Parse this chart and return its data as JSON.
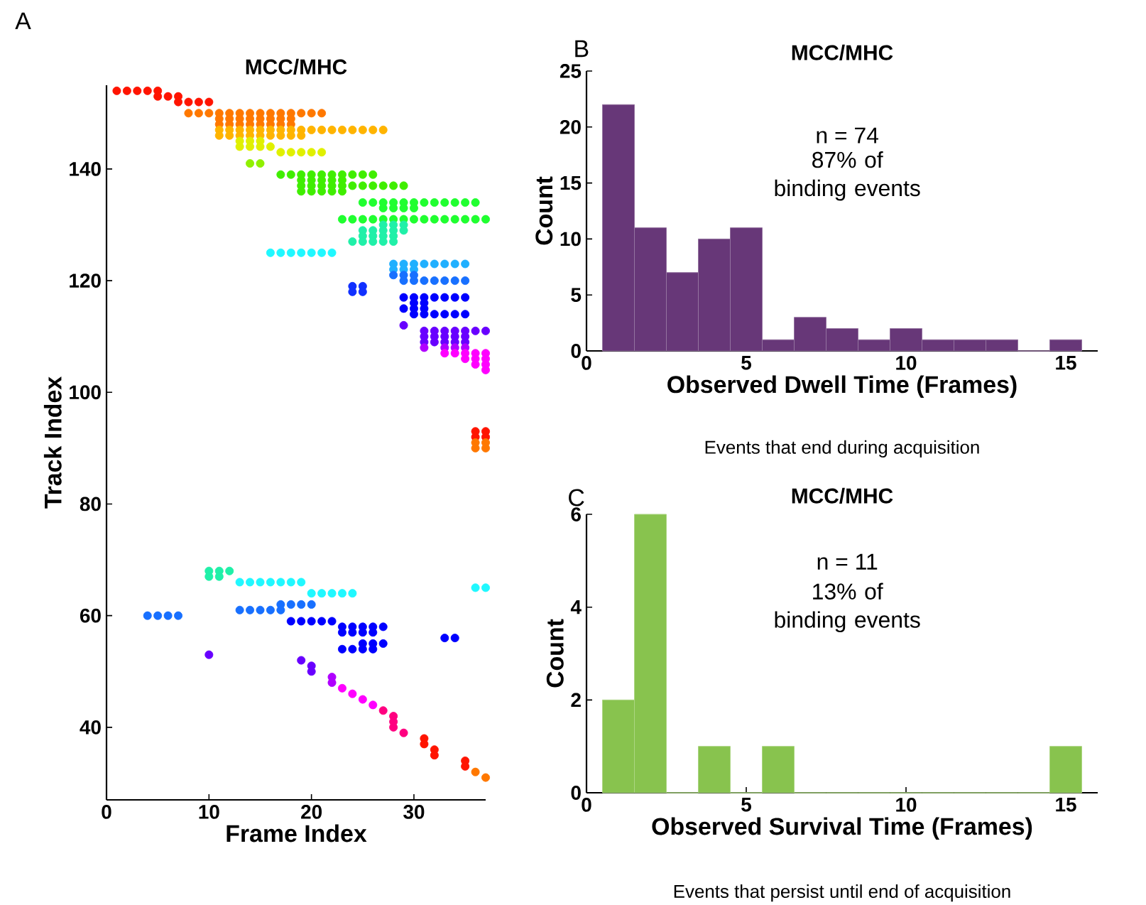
{
  "chart_data": [
    {
      "type": "scatter",
      "title": "MCC/MHC",
      "xlabel": "Frame Index",
      "ylabel": "Track Index",
      "annotations": [
        "A"
      ],
      "xlim": [
        0,
        37
      ],
      "ylim": [
        27,
        155
      ],
      "xticks": [
        0,
        10,
        20,
        30
      ],
      "yticks": [
        40,
        60,
        80,
        100,
        120,
        140
      ],
      "marker": "circle",
      "series": [
        {
          "color": "#ff1400",
          "x": [
            1,
            2,
            3,
            4,
            5,
            5,
            6,
            7,
            7,
            8,
            9,
            10,
            36,
            37,
            36,
            37,
            31,
            31,
            32,
            32,
            35,
            35
          ],
          "values": [
            154,
            154,
            154,
            154,
            154,
            153,
            153,
            153,
            152,
            152,
            152,
            152,
            93,
            93,
            92,
            92,
            38,
            37,
            36,
            35,
            34,
            33
          ]
        },
        {
          "color": "#ff7800",
          "x": [
            8,
            9,
            10,
            11,
            12,
            13,
            14,
            15,
            16,
            17,
            18,
            19,
            20,
            21,
            11,
            12,
            13,
            14,
            15,
            16,
            17,
            18,
            11,
            12,
            13,
            14,
            15,
            16,
            17,
            18,
            36,
            37,
            36,
            37,
            36,
            37
          ],
          "values": [
            150,
            150,
            150,
            150,
            150,
            150,
            150,
            150,
            150,
            150,
            150,
            150,
            150,
            150,
            149,
            149,
            149,
            149,
            149,
            149,
            149,
            149,
            148,
            148,
            148,
            148,
            148,
            148,
            148,
            148,
            91,
            91,
            90,
            90,
            32,
            31
          ]
        },
        {
          "color": "#ffb400",
          "x": [
            11,
            12,
            13,
            14,
            15,
            16,
            17,
            18,
            19,
            20,
            21,
            22,
            23,
            24,
            25,
            26,
            27,
            11,
            12,
            13,
            14,
            15,
            16,
            17,
            18,
            19
          ],
          "values": [
            147,
            147,
            147,
            147,
            147,
            147,
            147,
            147,
            147,
            147,
            147,
            147,
            147,
            147,
            147,
            147,
            147,
            146,
            146,
            146,
            146,
            146,
            146,
            146,
            146,
            146
          ]
        },
        {
          "color": "#e0f000",
          "x": [
            13,
            14,
            15,
            13,
            14,
            15,
            16,
            17,
            18,
            19,
            20,
            21
          ],
          "values": [
            145,
            145,
            145,
            144,
            144,
            144,
            144,
            143,
            143,
            143,
            143,
            143
          ]
        },
        {
          "color": "#90f000",
          "x": [
            14,
            15
          ],
          "values": [
            141,
            141
          ]
        },
        {
          "color": "#40ee00",
          "x": [
            17,
            18,
            19,
            20,
            21,
            22,
            23,
            24,
            25,
            26,
            19,
            20,
            21,
            22,
            23,
            19,
            20,
            21,
            22,
            23,
            24,
            25,
            26,
            27,
            28,
            29,
            19,
            20,
            21,
            22,
            23
          ],
          "values": [
            139,
            139,
            139,
            139,
            139,
            139,
            139,
            139,
            139,
            139,
            138,
            138,
            138,
            138,
            138,
            137,
            137,
            137,
            137,
            137,
            137,
            137,
            137,
            137,
            137,
            137,
            136,
            136,
            136,
            136,
            136
          ]
        },
        {
          "color": "#20ff30",
          "x": [
            25,
            26,
            27,
            28,
            29,
            30,
            31,
            32,
            33,
            34,
            35,
            36,
            27,
            28,
            29,
            30,
            23,
            24,
            25,
            26,
            27,
            28,
            29,
            30,
            31,
            32,
            33,
            34,
            35,
            36,
            37
          ],
          "values": [
            134,
            134,
            134,
            134,
            134,
            134,
            134,
            134,
            134,
            134,
            134,
            134,
            133,
            133,
            133,
            133,
            131,
            131,
            131,
            131,
            131,
            131,
            131,
            131,
            131,
            131,
            131,
            131,
            131,
            131,
            131
          ]
        },
        {
          "color": "#20f0a8",
          "x": [
            27,
            28,
            29,
            25,
            26,
            27,
            28,
            29,
            25,
            26,
            27,
            28,
            24,
            25,
            26,
            27,
            28,
            10,
            11,
            12,
            10,
            11
          ],
          "values": [
            130,
            130,
            130,
            129,
            129,
            129,
            129,
            129,
            128,
            128,
            128,
            128,
            127,
            127,
            127,
            127,
            127,
            68,
            68,
            68,
            67,
            67
          ]
        },
        {
          "color": "#20f8ff",
          "x": [
            16,
            17,
            18,
            19,
            20,
            21,
            22,
            13,
            14,
            15,
            16,
            17,
            18,
            19,
            36,
            37,
            20,
            21,
            22,
            23,
            24
          ],
          "values": [
            125,
            125,
            125,
            125,
            125,
            125,
            125,
            66,
            66,
            66,
            66,
            66,
            66,
            66,
            65,
            65,
            64,
            64,
            64,
            64,
            64
          ]
        },
        {
          "color": "#20b0ff",
          "x": [
            28,
            29,
            30,
            31,
            32,
            33,
            34,
            35,
            28,
            29,
            30
          ],
          "values": [
            123,
            123,
            123,
            123,
            123,
            123,
            123,
            123,
            122,
            122,
            122
          ]
        },
        {
          "color": "#1870ff",
          "x": [
            28,
            29,
            30,
            29,
            30,
            31,
            32,
            33,
            34,
            35,
            17,
            18,
            19,
            20,
            13,
            14,
            15,
            16,
            17,
            4,
            5,
            6,
            7
          ],
          "values": [
            121,
            121,
            121,
            120,
            120,
            120,
            120,
            120,
            120,
            120,
            62,
            62,
            62,
            62,
            61,
            61,
            61,
            61,
            61,
            60,
            60,
            60,
            60
          ]
        },
        {
          "color": "#1030ff",
          "x": [
            24,
            25,
            24,
            25
          ],
          "values": [
            119,
            119,
            118,
            118
          ]
        },
        {
          "color": "#0000ff",
          "x": [
            29,
            30,
            31,
            32,
            33,
            34,
            35,
            30,
            31,
            29,
            30,
            31,
            30,
            31,
            32,
            33,
            34,
            35,
            18,
            19,
            20,
            21,
            22,
            23,
            24,
            25,
            26,
            27,
            23,
            24,
            25,
            26,
            33,
            34,
            25,
            26,
            27,
            23,
            24,
            25,
            26
          ],
          "values": [
            117,
            117,
            117,
            117,
            117,
            117,
            117,
            116,
            116,
            115,
            115,
            115,
            114,
            114,
            114,
            114,
            114,
            114,
            59,
            59,
            59,
            59,
            59,
            58,
            58,
            58,
            58,
            58,
            57,
            57,
            57,
            57,
            56,
            56,
            55,
            55,
            55,
            54,
            54,
            54,
            54
          ]
        },
        {
          "color": "#6800ff",
          "x": [
            29,
            31,
            32,
            33,
            34,
            35,
            36,
            37,
            31,
            32,
            33,
            34,
            35,
            31,
            32,
            33,
            34,
            35,
            10,
            19,
            20,
            20
          ],
          "values": [
            112,
            111,
            111,
            111,
            111,
            111,
            111,
            111,
            110,
            110,
            110,
            110,
            110,
            109,
            109,
            109,
            109,
            109,
            53,
            52,
            51,
            50
          ]
        },
        {
          "color": "#b000ff",
          "x": [
            31,
            33,
            34,
            35,
            22,
            22
          ],
          "values": [
            108,
            108,
            108,
            108,
            49,
            48
          ]
        },
        {
          "color": "#ff00ff",
          "x": [
            33,
            34,
            35,
            36,
            37,
            35,
            36,
            37,
            36,
            37,
            37,
            23,
            24,
            25,
            26
          ],
          "values": [
            107,
            107,
            107,
            107,
            107,
            106,
            106,
            106,
            105,
            105,
            104,
            47,
            46,
            45,
            44
          ]
        },
        {
          "color": "#ff0080",
          "x": [
            27,
            28,
            28,
            28,
            29
          ],
          "values": [
            43,
            42,
            41,
            40,
            39
          ]
        }
      ]
    },
    {
      "type": "histogram",
      "title": "MCC/MHC",
      "xlabel": "Observed Dwell Time (Frames)",
      "ylabel": "Count",
      "annotations": [
        "B",
        "n = 74",
        "87% of binding events",
        "Events that end during acquisition"
      ],
      "bins": [
        0.5,
        1.5,
        2.5,
        3.5,
        4.5,
        5.5,
        6.5,
        7.5,
        8.5,
        9.5,
        10.5,
        11.5,
        12.5,
        13.5,
        14.5,
        15.5
      ],
      "values": [
        22,
        11,
        7,
        10,
        11,
        1,
        3,
        2,
        1,
        2,
        1,
        1,
        1,
        0,
        1
      ],
      "color": "#673778",
      "xlim": [
        0,
        16
      ],
      "ylim": [
        0,
        25
      ],
      "xticks": [
        0,
        5,
        10,
        15
      ],
      "yticks": [
        0,
        5,
        10,
        15,
        20,
        25
      ]
    },
    {
      "type": "histogram",
      "title": "MCC/MHC",
      "xlabel": "Observed Survival Time (Frames)",
      "ylabel": "Count",
      "annotations": [
        "C",
        "n = 11",
        "13% of binding events",
        "Events that persist until end of acquisition"
      ],
      "bins": [
        0.5,
        1.5,
        2.5,
        3.5,
        4.5,
        5.5,
        6.5,
        7.5,
        8.5,
        9.5,
        10.5,
        11.5,
        12.5,
        13.5,
        14.5,
        15.5
      ],
      "values": [
        2,
        6,
        0,
        1,
        0,
        1,
        0,
        0,
        0,
        0,
        0,
        0,
        0,
        0,
        1
      ],
      "color": "#88c34e",
      "xlim": [
        0,
        16
      ],
      "ylim": [
        0,
        6
      ],
      "xticks": [
        0,
        5,
        10,
        15
      ],
      "yticks": [
        0,
        2,
        4,
        6
      ]
    }
  ]
}
